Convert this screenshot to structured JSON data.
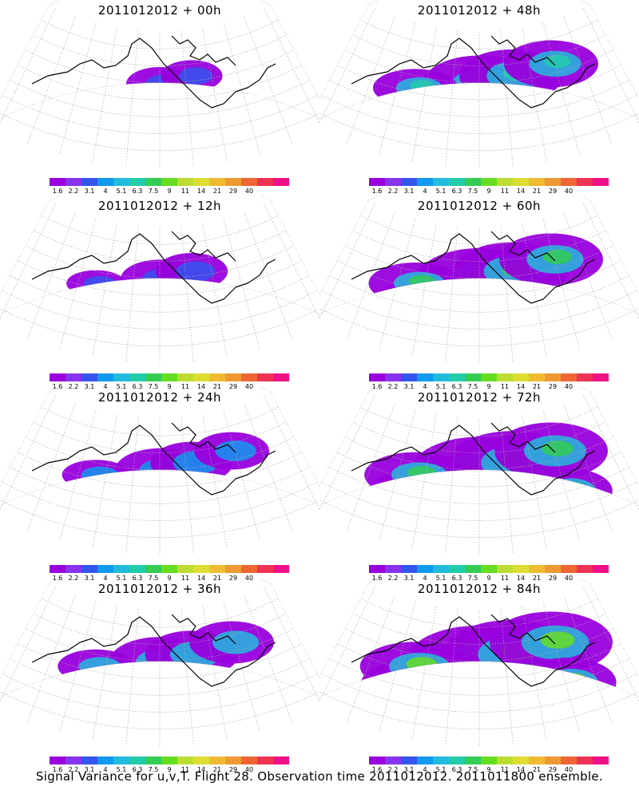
{
  "panels": [
    {
      "title": "2011012012 + 00h",
      "level": 0
    },
    {
      "title": "2011012012 + 48h",
      "level": 4
    },
    {
      "title": "2011012012 + 12h",
      "level": 1
    },
    {
      "title": "2011012012 + 60h",
      "level": 5
    },
    {
      "title": "2011012012 + 24h",
      "level": 2
    },
    {
      "title": "2011012012 + 72h",
      "level": 6
    },
    {
      "title": "2011012012 + 36h",
      "level": 3
    },
    {
      "title": "2011012012 + 84h",
      "level": 7
    }
  ],
  "colorbar": {
    "colors": [
      "#9900dd",
      "#8833ee",
      "#3355ee",
      "#1199ee",
      "#22bbdd",
      "#22ccaa",
      "#33cc55",
      "#66dd22",
      "#bbdd33",
      "#dddd33",
      "#eebb33",
      "#ee9933",
      "#ee6633",
      "#ee3355",
      "#ee1188"
    ],
    "labels": [
      "1.6",
      "2.2",
      "3.1",
      "4",
      "5.1",
      "6.3",
      "7.5",
      "9",
      "11",
      "14",
      "21",
      "29",
      "40"
    ]
  },
  "footer": "Signal Variance for u,v,T. Flight 28. Observation time 2011012012. 2011011800 ensemble."
}
